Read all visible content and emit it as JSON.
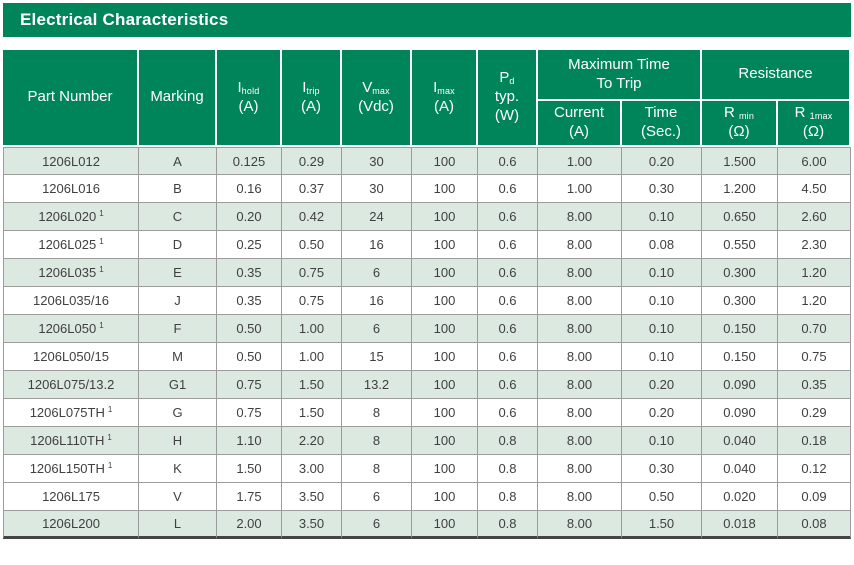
{
  "title": "Electrical Characteristics",
  "colors": {
    "green": "#00855B",
    "shaded_row": "#dbe9e0",
    "row_border": "#9c9c9c",
    "body_text": "#404040",
    "bottom_bar": "#444444"
  },
  "columns": {
    "part_number": "Part Number",
    "marking": "Marking",
    "i_hold": {
      "sym": "I",
      "sub": "hold",
      "unit": "(A)"
    },
    "i_trip": {
      "sym": "I",
      "sub": "trip",
      "unit": "(A)"
    },
    "v_max": {
      "sym": "V",
      "sub": "max",
      "unit": "(Vdc)"
    },
    "i_max": {
      "sym": "I",
      "sub": "max",
      "unit": "(A)"
    },
    "p_d": {
      "sym": "P",
      "sub": "d",
      "line2": "typ.",
      "unit": "(W)"
    },
    "trip_group": {
      "line1": "Maximum Time",
      "line2": "To Trip"
    },
    "trip_current": {
      "label": "Current",
      "unit": "(A)"
    },
    "trip_time": {
      "label": "Time",
      "unit": "(Sec.)"
    },
    "resistance_group": "Resistance",
    "r_min": {
      "sym": "R",
      "sub": "min",
      "unit": "(Ω)"
    },
    "r_1max": {
      "sym": "R",
      "sub": "1max",
      "unit": "(Ω)"
    }
  },
  "rows": [
    {
      "part": "1206L012",
      "footnote": "",
      "marking": "A",
      "i_hold": "0.125",
      "i_trip": "0.29",
      "v_max": "30",
      "i_max": "100",
      "p_d": "0.6",
      "trip_current": "1.00",
      "trip_time": "0.20",
      "r_min": "1.500",
      "r_1max": "6.00",
      "shaded": true
    },
    {
      "part": "1206L016",
      "footnote": "",
      "marking": "B",
      "i_hold": "0.16",
      "i_trip": "0.37",
      "v_max": "30",
      "i_max": "100",
      "p_d": "0.6",
      "trip_current": "1.00",
      "trip_time": "0.30",
      "r_min": "1.200",
      "r_1max": "4.50",
      "shaded": false
    },
    {
      "part": "1206L020",
      "footnote": "1",
      "marking": "C",
      "i_hold": "0.20",
      "i_trip": "0.42",
      "v_max": "24",
      "i_max": "100",
      "p_d": "0.6",
      "trip_current": "8.00",
      "trip_time": "0.10",
      "r_min": "0.650",
      "r_1max": "2.60",
      "shaded": true
    },
    {
      "part": "1206L025",
      "footnote": "1",
      "marking": "D",
      "i_hold": "0.25",
      "i_trip": "0.50",
      "v_max": "16",
      "i_max": "100",
      "p_d": "0.6",
      "trip_current": "8.00",
      "trip_time": "0.08",
      "r_min": "0.550",
      "r_1max": "2.30",
      "shaded": false
    },
    {
      "part": "1206L035",
      "footnote": "1",
      "marking": "E",
      "i_hold": "0.35",
      "i_trip": "0.75",
      "v_max": "6",
      "i_max": "100",
      "p_d": "0.6",
      "trip_current": "8.00",
      "trip_time": "0.10",
      "r_min": "0.300",
      "r_1max": "1.20",
      "shaded": true
    },
    {
      "part": "1206L035/16",
      "footnote": "",
      "marking": "J",
      "i_hold": "0.35",
      "i_trip": "0.75",
      "v_max": "16",
      "i_max": "100",
      "p_d": "0.6",
      "trip_current": "8.00",
      "trip_time": "0.10",
      "r_min": "0.300",
      "r_1max": "1.20",
      "shaded": false
    },
    {
      "part": "1206L050",
      "footnote": "1",
      "marking": "F",
      "i_hold": "0.50",
      "i_trip": "1.00",
      "v_max": "6",
      "i_max": "100",
      "p_d": "0.6",
      "trip_current": "8.00",
      "trip_time": "0.10",
      "r_min": "0.150",
      "r_1max": "0.70",
      "shaded": true
    },
    {
      "part": "1206L050/15",
      "footnote": "",
      "marking": "M",
      "i_hold": "0.50",
      "i_trip": "1.00",
      "v_max": "15",
      "i_max": "100",
      "p_d": "0.6",
      "trip_current": "8.00",
      "trip_time": "0.10",
      "r_min": "0.150",
      "r_1max": "0.75",
      "shaded": false
    },
    {
      "part": "1206L075/13.2",
      "footnote": "",
      "marking": "G1",
      "i_hold": "0.75",
      "i_trip": "1.50",
      "v_max": "13.2",
      "i_max": "100",
      "p_d": "0.6",
      "trip_current": "8.00",
      "trip_time": "0.20",
      "r_min": "0.090",
      "r_1max": "0.35",
      "shaded": true
    },
    {
      "part": "1206L075TH",
      "footnote": "1",
      "marking": "G",
      "i_hold": "0.75",
      "i_trip": "1.50",
      "v_max": "8",
      "i_max": "100",
      "p_d": "0.6",
      "trip_current": "8.00",
      "trip_time": "0.20",
      "r_min": "0.090",
      "r_1max": "0.29",
      "shaded": false
    },
    {
      "part": "1206L110TH",
      "footnote": "1",
      "marking": "H",
      "i_hold": "1.10",
      "i_trip": "2.20",
      "v_max": "8",
      "i_max": "100",
      "p_d": "0.8",
      "trip_current": "8.00",
      "trip_time": "0.10",
      "r_min": "0.040",
      "r_1max": "0.18",
      "shaded": true
    },
    {
      "part": "1206L150TH",
      "footnote": "1",
      "marking": "K",
      "i_hold": "1.50",
      "i_trip": "3.00",
      "v_max": "8",
      "i_max": "100",
      "p_d": "0.8",
      "trip_current": "8.00",
      "trip_time": "0.30",
      "r_min": "0.040",
      "r_1max": "0.12",
      "shaded": false
    },
    {
      "part": "1206L175",
      "footnote": "",
      "marking": "V",
      "i_hold": "1.75",
      "i_trip": "3.50",
      "v_max": "6",
      "i_max": "100",
      "p_d": "0.8",
      "trip_current": "8.00",
      "trip_time": "0.50",
      "r_min": "0.020",
      "r_1max": "0.09",
      "shaded": false
    },
    {
      "part": "1206L200",
      "footnote": "",
      "marking": "L",
      "i_hold": "2.00",
      "i_trip": "3.50",
      "v_max": "6",
      "i_max": "100",
      "p_d": "0.8",
      "trip_current": "8.00",
      "trip_time": "1.50",
      "r_min": "0.018",
      "r_1max": "0.08",
      "shaded": true
    }
  ]
}
